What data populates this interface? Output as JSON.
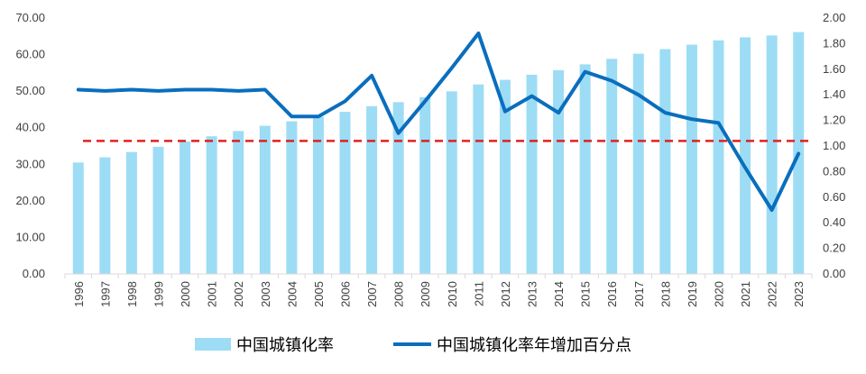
{
  "chart_data": {
    "type": "bar+line",
    "categories": [
      "1996",
      "1997",
      "1998",
      "1999",
      "2000",
      "2001",
      "2002",
      "2003",
      "2004",
      "2005",
      "2006",
      "2007",
      "2008",
      "2009",
      "2010",
      "2011",
      "2012",
      "2013",
      "2014",
      "2015",
      "2016",
      "2017",
      "2018",
      "2019",
      "2020",
      "2021",
      "2022",
      "2023"
    ],
    "series": [
      {
        "name": "中国城镇化率",
        "type": "bar",
        "axis": "left",
        "color": "#9ddcf5",
        "values": [
          30.48,
          31.91,
          33.35,
          34.78,
          36.22,
          37.66,
          39.09,
          40.53,
          41.76,
          42.99,
          44.34,
          45.89,
          46.99,
          48.34,
          49.95,
          51.83,
          53.1,
          54.49,
          55.75,
          57.33,
          58.84,
          60.24,
          61.5,
          62.71,
          63.89,
          64.72,
          65.22,
          66.16
        ]
      },
      {
        "name": "中国城镇化率年增加百分点",
        "type": "line",
        "axis": "right",
        "color": "#0a6ebd",
        "values": [
          1.44,
          1.43,
          1.44,
          1.43,
          1.44,
          1.44,
          1.43,
          1.44,
          1.23,
          1.23,
          1.35,
          1.55,
          1.1,
          1.35,
          1.61,
          1.88,
          1.27,
          1.39,
          1.26,
          1.58,
          1.51,
          1.4,
          1.26,
          1.21,
          1.18,
          0.83,
          0.5,
          0.94
        ]
      }
    ],
    "reference_line": {
      "axis": "right",
      "value": 1.04,
      "color": "#e02020",
      "style": "dashed"
    },
    "left_axis": {
      "min": 0,
      "max": 70,
      "step": 10,
      "tick_labels": [
        "0.00",
        "10.00",
        "20.00",
        "30.00",
        "40.00",
        "50.00",
        "60.00",
        "70.00"
      ]
    },
    "right_axis": {
      "min": 0,
      "max": 2,
      "step": 0.2,
      "tick_labels": [
        "0.00",
        "0.20",
        "0.40",
        "0.60",
        "0.80",
        "1.00",
        "1.20",
        "1.40",
        "1.60",
        "1.80",
        "2.00"
      ]
    },
    "grid": false,
    "legend_position": "bottom"
  }
}
